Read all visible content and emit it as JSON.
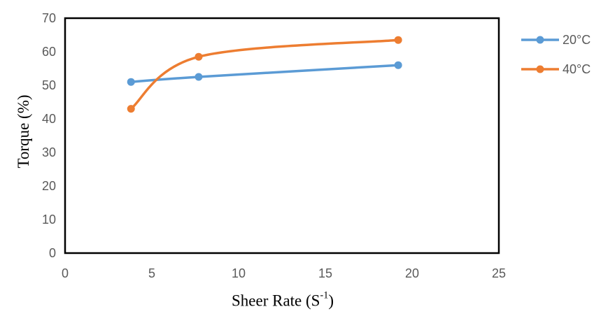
{
  "chart_data": {
    "type": "line",
    "title": "",
    "xlabel": "Sheer Rate (S⁻¹)",
    "xlabel_parts": {
      "prefix": "Sheer Rate (S",
      "sup": "-1",
      "suffix": ")"
    },
    "ylabel": "Torque (%)",
    "x": [
      3.8,
      7.7,
      19.2
    ],
    "series": [
      {
        "name": "20°C",
        "color": "#5B9BD5",
        "values": [
          51,
          52.5,
          56
        ]
      },
      {
        "name": "40°C",
        "color": "#ED7D31",
        "values": [
          43,
          58.5,
          63.5
        ]
      }
    ],
    "xlim": [
      0,
      25
    ],
    "ylim": [
      0,
      70
    ],
    "xticks": [
      0,
      5,
      10,
      15,
      20,
      25
    ],
    "yticks": [
      0,
      10,
      20,
      30,
      40,
      50,
      60,
      70
    ],
    "grid": false,
    "legend_position": "right",
    "line_style": "smooth",
    "marker": "circle"
  },
  "colors": {
    "tick_label": "#595959",
    "legend_label": "#595959",
    "axis_title": "#000000",
    "plot_border": "#000000",
    "background": "#ffffff"
  }
}
